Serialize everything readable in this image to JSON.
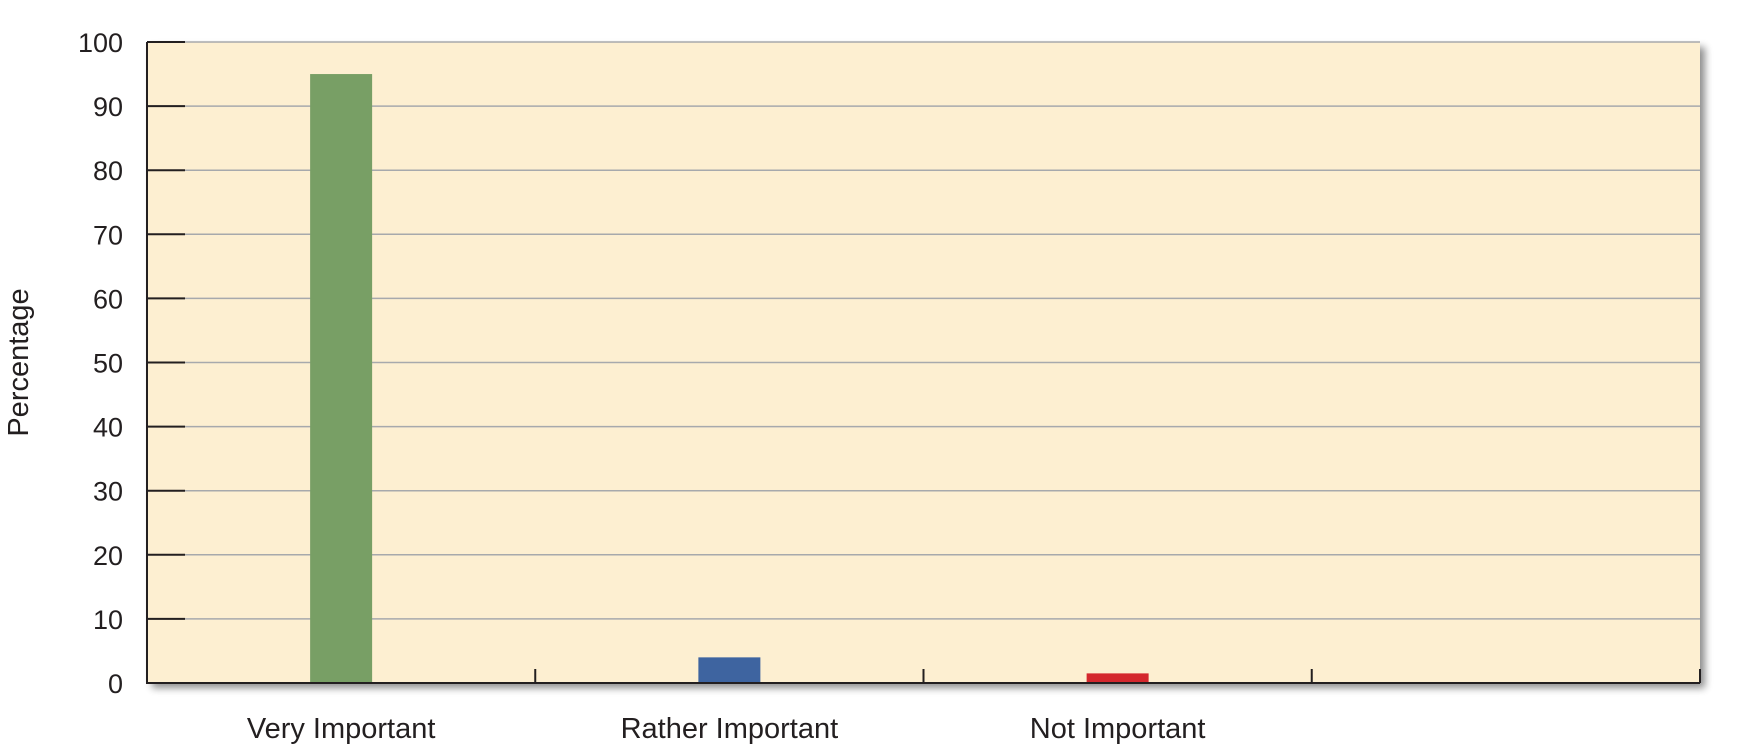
{
  "chart_data": {
    "type": "bar",
    "title": "",
    "xlabel": "",
    "ylabel": "Percentage",
    "categories": [
      "Very Important",
      "Rather Important",
      "Not Important",
      ""
    ],
    "values": [
      95,
      4,
      1.5,
      null
    ],
    "bar_colors": [
      "#789f65",
      "#3e64a0",
      "#d4272d"
    ],
    "ylim": [
      0,
      100
    ],
    "yticks": [
      0,
      10,
      20,
      30,
      40,
      50,
      60,
      70,
      80,
      90,
      100
    ],
    "grid": true,
    "legend": "none",
    "plot_background": "#fdefd1",
    "gridline_color": "#a7a9ac"
  }
}
